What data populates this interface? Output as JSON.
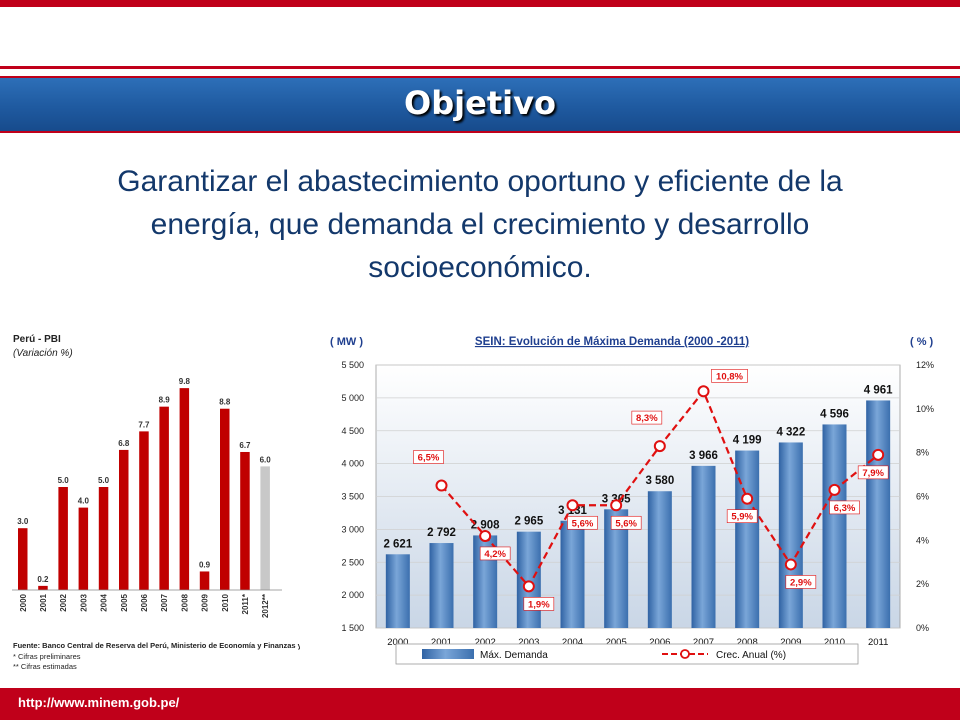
{
  "slide": {
    "title": "Objetivo",
    "subtitle": "Garantizar el abastecimiento oportuno y eficiente de la energía, que demanda el crecimiento y desarrollo socioeconómico.",
    "footer_url": "http://www.minem.gob.pe/"
  },
  "colors": {
    "accent_red": "#c0001a",
    "title_blue": "#1f5aa0",
    "text_navy": "#13386b",
    "bar_blue": "#4a84c4"
  },
  "chart_data": [
    {
      "type": "bar",
      "title": "Perú - PBI",
      "subtitle": "(Variación %)",
      "categories": [
        "2000",
        "2001",
        "2002",
        "2003",
        "2004",
        "2005",
        "2006",
        "2007",
        "2008",
        "2009",
        "2010",
        "2011*",
        "2012**"
      ],
      "values": [
        3.0,
        0.2,
        5.0,
        4.0,
        5.0,
        6.8,
        7.7,
        8.9,
        9.8,
        0.9,
        8.8,
        6.7,
        6.0
      ],
      "value_labels": [
        "3.0",
        "0.2",
        "5.0",
        "4.0",
        "5.0",
        "6.8",
        "7.7",
        "8.9",
        "9.8",
        "0.9",
        "8.8",
        "6.7",
        "6.0"
      ],
      "estimated_index": 12,
      "ylim": [
        0,
        10
      ],
      "source_note": "Fuente: Banco Central de Reserva del Perú, Ministerio de Economía y Finanzas y FMI.",
      "notes": [
        "* Cifras preliminares",
        "** Cifras estimadas"
      ]
    },
    {
      "type": "bar",
      "title": "SEIN: Evolución de Máxima Demanda (2000 -2011)",
      "ylabel": "( MW )",
      "y2label": "( % )",
      "categories": [
        "2000",
        "2001",
        "2002",
        "2003",
        "2004",
        "2005",
        "2006",
        "2007",
        "2008",
        "2009",
        "2010",
        "2011"
      ],
      "ylim": [
        1500,
        5500
      ],
      "yticks": [
        1500,
        2000,
        2500,
        3000,
        3500,
        4000,
        4500,
        5000,
        5500
      ],
      "ytick_labels": [
        "1 500",
        "2 000",
        "2 500",
        "3 000",
        "3 500",
        "4 000",
        "4 500",
        "5 000",
        "5 500"
      ],
      "y2lim": [
        0,
        12
      ],
      "y2ticks": [
        0,
        2,
        4,
        6,
        8,
        10,
        12
      ],
      "y2tick_labels": [
        "0%",
        "2%",
        "4%",
        "6%",
        "8%",
        "10%",
        "12%"
      ],
      "grid": true,
      "legend": "bottom",
      "series": [
        {
          "name": "Máx. Demanda",
          "type": "bar",
          "axis": "left",
          "values": [
            2621,
            2792,
            2908,
            2965,
            3131,
            3305,
            3580,
            3966,
            4199,
            4322,
            4596,
            4961
          ],
          "labels": [
            "2 621",
            "2 792",
            "2 908",
            "2 965",
            "3 131",
            "3 305",
            "3 580",
            "3 966",
            "4 199",
            "4 322",
            "4 596",
            "4 961"
          ]
        },
        {
          "name": "Crec. Anual (%)",
          "type": "line",
          "axis": "right",
          "values": [
            null,
            6.5,
            4.2,
            1.9,
            5.6,
            5.6,
            8.3,
            10.8,
            5.9,
            2.9,
            6.3,
            7.9
          ],
          "labels": [
            "",
            "6,5%",
            "4,2%",
            "1,9%",
            "5,6%",
            "5,6%",
            "8,3%",
            "10,8%",
            "5,9%",
            "2,9%",
            "6,3%",
            "7,9%"
          ]
        }
      ]
    }
  ]
}
